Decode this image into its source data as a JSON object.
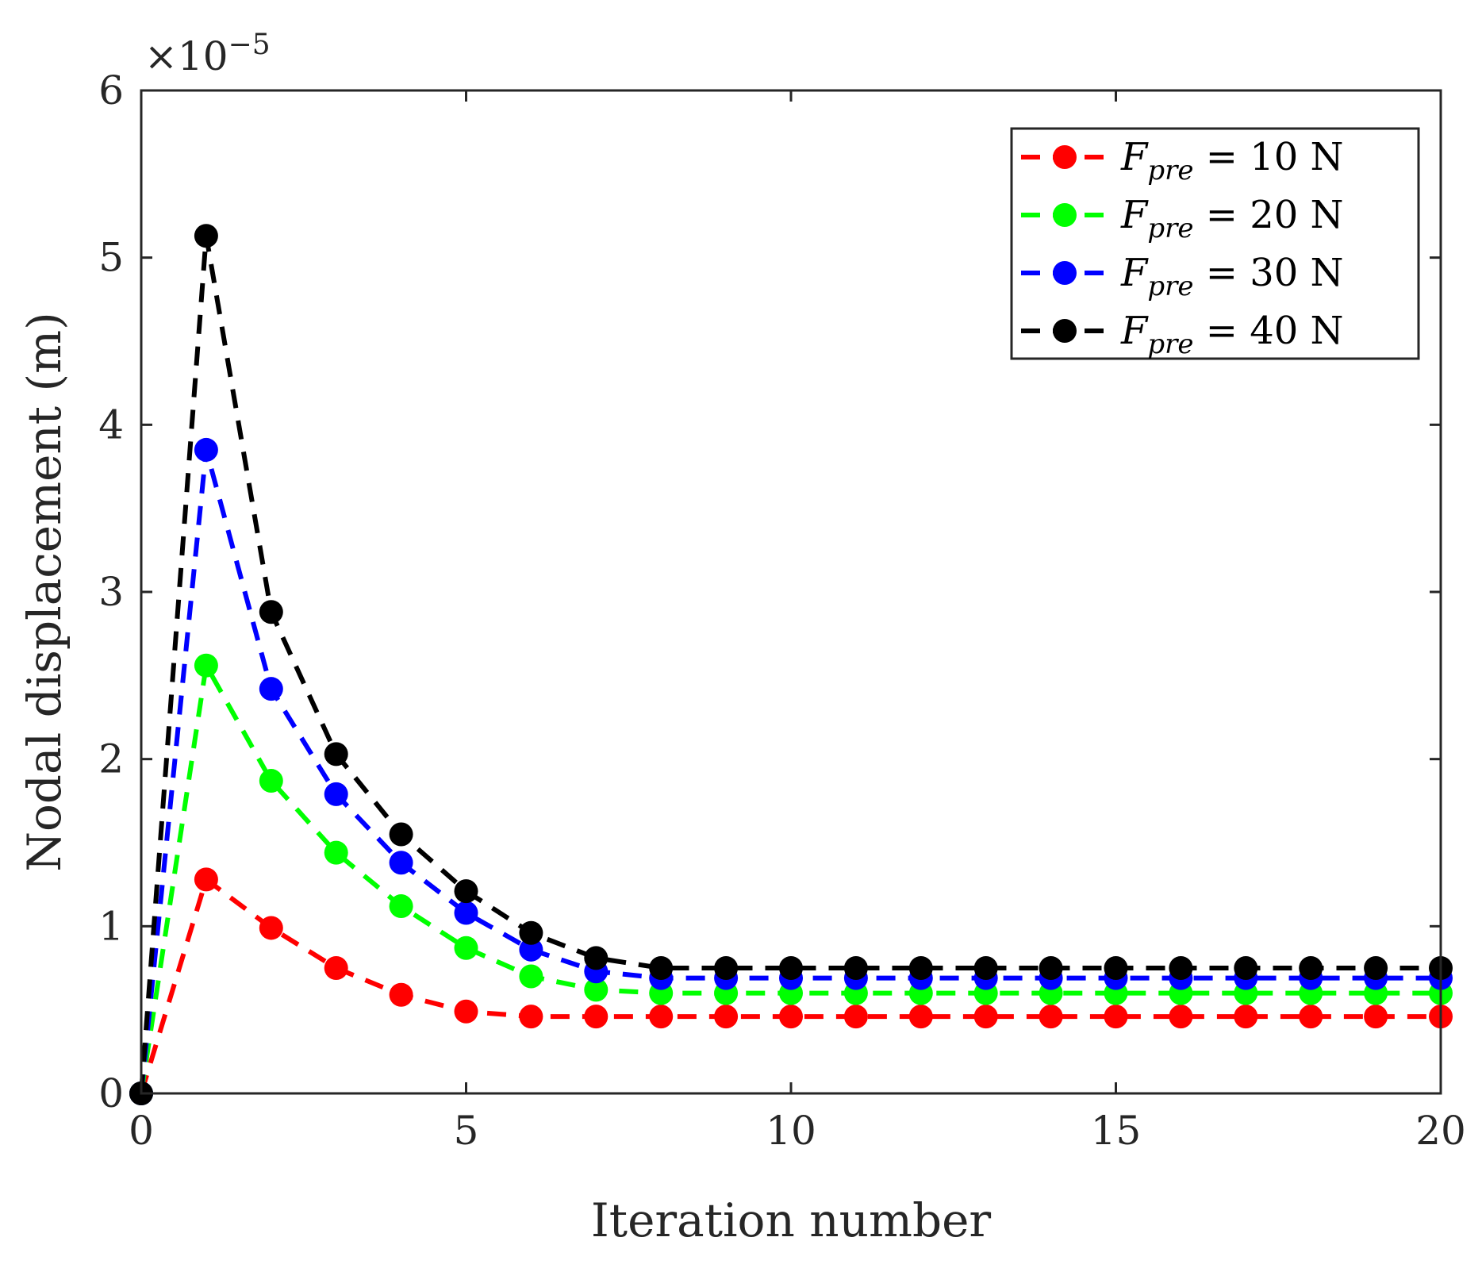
{
  "chart_data": {
    "type": "line",
    "title": "",
    "xlabel": "Iteration number",
    "ylabel": "Nodal displacement (m)",
    "xlim": [
      0,
      20
    ],
    "ylim": [
      0,
      6
    ],
    "y_exponent_label": "×10",
    "y_exponent_power": "−5",
    "x_ticks": [
      0,
      5,
      10,
      15,
      20
    ],
    "x_tick_labels": [
      "0",
      "5",
      "10",
      "15",
      "20"
    ],
    "y_ticks": [
      0,
      1,
      2,
      3,
      4,
      5,
      6
    ],
    "y_tick_labels": [
      "0",
      "1",
      "2",
      "3",
      "4",
      "5",
      "6"
    ],
    "grid": false,
    "legend_position": "top-right",
    "x": [
      0,
      1,
      2,
      3,
      4,
      5,
      6,
      7,
      8,
      9,
      10,
      11,
      12,
      13,
      14,
      15,
      16,
      17,
      18,
      19,
      20
    ],
    "series": [
      {
        "name": "F_pre = 10 N",
        "legend_var": "F",
        "legend_sub": "pre",
        "legend_rest": " = 10 N",
        "color": "#ff0000",
        "values": [
          0,
          1.28,
          0.99,
          0.75,
          0.59,
          0.49,
          0.46,
          0.46,
          0.46,
          0.46,
          0.46,
          0.46,
          0.46,
          0.46,
          0.46,
          0.46,
          0.46,
          0.46,
          0.46,
          0.46,
          0.46
        ]
      },
      {
        "name": "F_pre = 20 N",
        "legend_var": "F",
        "legend_sub": "pre",
        "legend_rest": " = 20 N",
        "color": "#00ff00",
        "values": [
          0,
          2.56,
          1.87,
          1.44,
          1.12,
          0.87,
          0.7,
          0.62,
          0.6,
          0.6,
          0.6,
          0.6,
          0.6,
          0.6,
          0.6,
          0.6,
          0.6,
          0.6,
          0.6,
          0.6,
          0.6
        ]
      },
      {
        "name": "F_pre = 30 N",
        "legend_var": "F",
        "legend_sub": "pre",
        "legend_rest": " = 30 N",
        "color": "#0000ff",
        "values": [
          0,
          3.85,
          2.42,
          1.79,
          1.38,
          1.08,
          0.86,
          0.73,
          0.69,
          0.69,
          0.69,
          0.69,
          0.69,
          0.69,
          0.69,
          0.69,
          0.69,
          0.69,
          0.69,
          0.69,
          0.69
        ]
      },
      {
        "name": "F_pre = 40 N",
        "legend_var": "F",
        "legend_sub": "pre",
        "legend_rest": " = 40 N",
        "color": "#000000",
        "values": [
          0,
          5.13,
          2.88,
          2.03,
          1.55,
          1.21,
          0.96,
          0.81,
          0.75,
          0.75,
          0.75,
          0.75,
          0.75,
          0.75,
          0.75,
          0.75,
          0.75,
          0.75,
          0.75,
          0.75,
          0.75
        ]
      }
    ]
  }
}
